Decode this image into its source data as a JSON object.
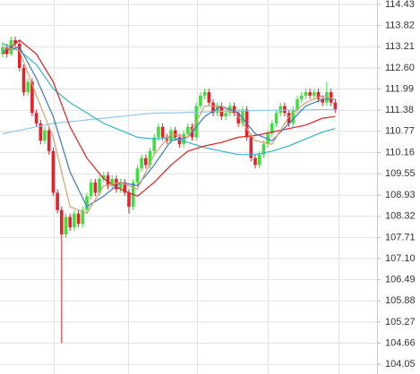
{
  "chart_data": {
    "type": "candlestick",
    "ylim": [
      103.77,
      114.56
    ],
    "yticks": [
      114.43,
      113.82,
      113.21,
      {
        "value": 112.6,
        "label": "112.60"
      },
      111.99,
      111.38,
      110.77,
      110.16,
      109.55,
      108.93,
      108.32,
      107.71,
      {
        "value": 107.1,
        "label": "107.10"
      },
      106.49,
      105.88,
      105.27,
      104.66,
      104.05
    ],
    "grid": true,
    "up_color": "#3ee03e",
    "down_color": "#e8202a",
    "open": [
      113.0,
      113.2,
      113.0,
      113.4,
      113.3,
      112.6,
      111.9,
      112.2,
      111.3,
      111.0,
      110.5,
      110.8,
      110.2,
      109.0,
      108.5,
      107.8,
      108.3,
      108.0,
      108.4,
      108.1,
      108.5,
      108.9,
      109.3,
      109.0,
      109.4,
      109.5,
      109.2,
      109.4,
      109.1,
      109.3,
      109.0,
      108.6,
      109.3,
      109.7,
      110.0,
      109.8,
      110.2,
      110.6,
      110.9,
      110.6,
      110.5,
      110.8,
      110.6,
      110.4,
      110.7,
      110.9,
      110.6,
      111.5,
      111.8,
      111.9,
      111.6,
      111.3,
      111.5,
      111.2,
      111.3,
      111.5,
      111.3,
      111.0,
      111.4,
      110.6,
      110.0,
      109.8,
      110.1,
      110.4,
      110.7,
      111.0,
      111.3,
      111.5,
      111.3,
      111.0,
      111.4,
      111.7,
      111.8,
      111.9,
      111.8,
      111.9,
      111.7,
      111.6,
      111.9,
      111.6
    ],
    "high": [
      113.35,
      113.3,
      113.5,
      113.5,
      113.4,
      112.7,
      112.3,
      112.3,
      111.4,
      111.1,
      110.9,
      110.9,
      110.3,
      109.1,
      108.6,
      108.4,
      108.4,
      108.5,
      108.5,
      108.6,
      109.0,
      109.4,
      109.4,
      109.5,
      109.6,
      109.6,
      109.5,
      109.5,
      109.4,
      109.4,
      109.1,
      109.4,
      109.8,
      110.1,
      110.1,
      110.3,
      110.7,
      111.0,
      111.0,
      110.7,
      110.9,
      110.9,
      110.7,
      110.8,
      111.0,
      111.0,
      111.6,
      111.9,
      112.0,
      112.0,
      111.7,
      111.6,
      111.6,
      111.4,
      111.6,
      111.6,
      111.4,
      111.5,
      111.5,
      110.7,
      110.1,
      110.2,
      110.5,
      110.8,
      111.1,
      111.4,
      111.6,
      111.6,
      111.4,
      111.5,
      111.8,
      111.9,
      112.0,
      112.0,
      112.0,
      112.0,
      111.8,
      112.2,
      112.0,
      111.7
    ],
    "low": [
      112.9,
      112.9,
      112.95,
      113.2,
      112.5,
      111.8,
      111.8,
      111.2,
      110.9,
      110.4,
      110.4,
      110.1,
      108.9,
      108.4,
      104.66,
      107.7,
      107.9,
      107.9,
      108.0,
      108.0,
      108.4,
      108.8,
      108.9,
      108.9,
      109.3,
      109.1,
      109.1,
      109.0,
      109.0,
      108.9,
      108.4,
      108.5,
      109.2,
      109.6,
      109.7,
      109.7,
      110.1,
      110.5,
      110.5,
      110.4,
      110.4,
      110.5,
      110.3,
      110.3,
      110.6,
      110.5,
      110.5,
      111.4,
      111.7,
      111.5,
      111.2,
      111.2,
      111.1,
      111.1,
      111.2,
      111.2,
      110.9,
      110.9,
      110.5,
      109.9,
      109.7,
      109.7,
      110.0,
      110.3,
      110.6,
      110.9,
      111.2,
      111.2,
      110.9,
      110.9,
      111.3,
      111.6,
      111.7,
      111.7,
      111.7,
      111.6,
      111.5,
      111.5,
      111.5,
      111.3
    ],
    "close": [
      113.2,
      113.0,
      113.4,
      113.3,
      112.6,
      111.9,
      112.2,
      111.3,
      111.0,
      110.5,
      110.8,
      110.2,
      109.0,
      108.5,
      107.8,
      108.3,
      108.0,
      108.4,
      108.1,
      108.5,
      108.9,
      109.3,
      109.0,
      109.4,
      109.5,
      109.2,
      109.4,
      109.1,
      109.3,
      109.0,
      108.6,
      109.3,
      109.7,
      110.0,
      109.8,
      110.2,
      110.6,
      110.9,
      110.6,
      110.5,
      110.8,
      110.6,
      110.4,
      110.7,
      110.9,
      110.6,
      111.5,
      111.8,
      111.9,
      111.6,
      111.3,
      111.5,
      111.2,
      111.3,
      111.5,
      111.3,
      111.0,
      111.4,
      110.6,
      110.0,
      109.8,
      110.1,
      110.4,
      110.7,
      111.0,
      111.3,
      111.5,
      111.3,
      111.0,
      111.4,
      111.7,
      111.8,
      111.9,
      111.8,
      111.9,
      111.7,
      111.6,
      111.9,
      111.6,
      111.4
    ],
    "lines": [
      {
        "color": "#90c8e8",
        "x": [
          0,
          4,
          8,
          12,
          16,
          20,
          24,
          28,
          32,
          36,
          40,
          44,
          48,
          52,
          56,
          60,
          64,
          68,
          72,
          76,
          79
        ],
        "values": [
          110.7,
          110.8,
          110.9,
          111.0,
          111.05,
          111.1,
          111.15,
          111.2,
          111.25,
          111.3,
          111.3,
          111.32,
          111.33,
          111.35,
          111.36,
          111.37,
          111.38,
          111.38,
          111.39,
          111.4,
          111.4
        ]
      },
      {
        "color": "#30b8c8",
        "x": [
          0,
          4,
          8,
          12,
          16,
          20,
          24,
          28,
          32,
          36,
          40,
          44,
          48,
          52,
          56,
          60,
          64,
          68,
          72,
          76,
          79
        ],
        "values": [
          113.3,
          113.1,
          112.7,
          112.0,
          111.6,
          111.3,
          111.0,
          110.8,
          110.6,
          110.55,
          110.6,
          110.45,
          110.3,
          110.2,
          110.1,
          110.1,
          110.2,
          110.35,
          110.55,
          110.75,
          110.85
        ]
      },
      {
        "color": "#e02020",
        "x": [
          0,
          4,
          8,
          12,
          16,
          20,
          24,
          28,
          32,
          36,
          40,
          44,
          48,
          52,
          56,
          60,
          64,
          68,
          72,
          76,
          79
        ],
        "values": [
          113.0,
          113.4,
          113.0,
          112.2,
          110.9,
          110.0,
          109.4,
          109.1,
          108.9,
          109.3,
          109.8,
          110.2,
          110.35,
          110.45,
          110.6,
          110.65,
          110.75,
          110.85,
          110.95,
          111.15,
          111.2
        ]
      },
      {
        "color": "#3c78c8",
        "x": [
          0,
          4,
          8,
          12,
          16,
          20,
          24,
          28,
          32,
          36,
          40,
          44,
          48,
          52,
          56,
          60,
          64,
          68,
          72,
          76,
          79
        ],
        "values": [
          113.1,
          113.2,
          112.3,
          111.2,
          109.6,
          108.6,
          108.9,
          109.3,
          109.2,
          109.8,
          110.5,
          110.6,
          111.2,
          111.5,
          111.3,
          110.7,
          110.5,
          111.0,
          111.5,
          111.7,
          111.7
        ]
      },
      {
        "color": "#d8a070",
        "x": [
          0,
          4,
          8,
          12,
          16,
          20,
          24,
          28,
          32,
          36,
          40,
          44,
          48,
          52,
          56,
          60,
          64,
          68,
          72,
          76,
          79
        ],
        "values": [
          113.2,
          113.1,
          111.8,
          110.6,
          108.6,
          108.4,
          109.2,
          109.3,
          109.1,
          110.1,
          110.7,
          110.6,
          111.5,
          111.5,
          111.2,
          110.5,
          110.4,
          111.2,
          111.6,
          111.8,
          111.7
        ]
      }
    ]
  }
}
